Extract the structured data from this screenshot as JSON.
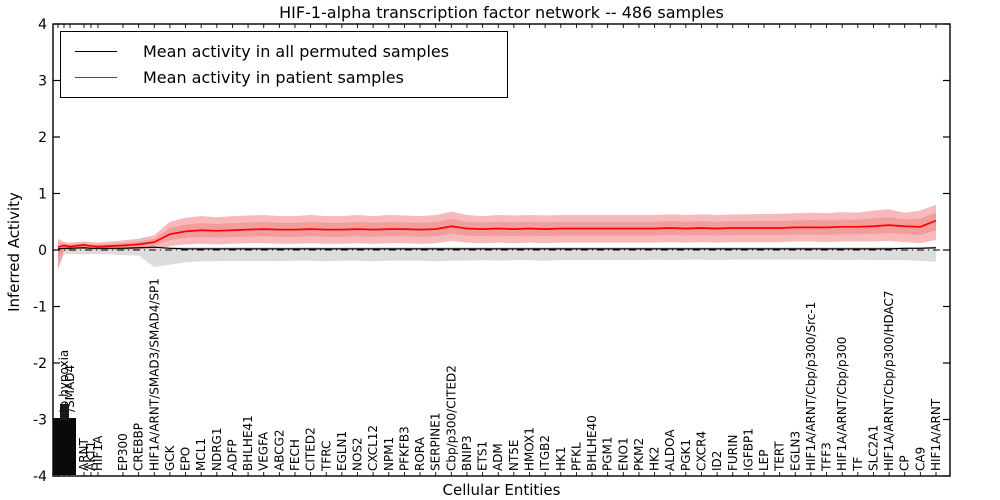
{
  "title": "HIF-1-alpha transcription factor network -- 486 samples",
  "axes": {
    "xlabel": "Cellular Entities",
    "ylabel": "Inferred Activity",
    "yticks": [
      "4",
      "3",
      "2",
      "1",
      "0",
      "-1",
      "-2",
      "-3",
      "-4"
    ],
    "ylim": [
      -4,
      4
    ]
  },
  "legend": {
    "items": [
      {
        "label": "Mean activity in all permuted samples",
        "color": "#000000"
      },
      {
        "label": "Mean activity in patient samples",
        "color": "#ff0000"
      }
    ]
  },
  "chart_data": {
    "type": "line",
    "title": "HIF-1-alpha transcription factor network -- 486 samples",
    "sample_count": 486,
    "xlabel": "Cellular Entities",
    "ylabel": "Inferred Activity",
    "ylim": [
      -4,
      4
    ],
    "grid": false,
    "legend_position": "upper left",
    "zero_line": {
      "y": 0,
      "style": "dash-dot",
      "color": "#000000"
    },
    "left_cluster_note": "first tick labels overlap into an unreadable black block; partially legible ones included",
    "categories": [
      "",
      "response to hypoxia",
      "/SMAD4",
      "ARNT",
      "AKT1",
      "HIF1A",
      "EP300",
      "CREBBP",
      "HIF1A/ARNT/SMAD3/SMAD4/SP1",
      "GCK",
      "EPO",
      "MCL1",
      "NDRG1",
      "ADFP",
      "BHLHE41",
      "VEGFA",
      "ABCG2",
      "FECH",
      "CITED2",
      "TFRC",
      "EGLN1",
      "NOS2",
      "CXCL12",
      "NPM1",
      "PFKFB3",
      "RORA",
      "SERPINE1",
      "Cbp/p300/CITED2",
      "BNIP3",
      "ETS1",
      "ADM",
      "NT5E",
      "HMOX1",
      "ITGB2",
      "HK1",
      "PFKL",
      "BHLHE40",
      "PGM1",
      "ENO1",
      "PKM2",
      "HK2",
      "ALDOA",
      "PGK1",
      "CXCR4",
      "ID2",
      "FURIN",
      "IGFBP1",
      "LEP",
      "TERT",
      "EGLN3",
      "HIF1A/ARNT/Cbp/p300/Src-1",
      "TFF3",
      "HIF1A/ARNT/Cbp/p300",
      "TF",
      "SLC2A1",
      "HIF1A/ARNT/Cbp/p300/HDAC7",
      "CP",
      "CA9",
      "HIF1A/ARNT"
    ],
    "series": [
      {
        "name": "Mean activity in all permuted samples",
        "color": "#000000",
        "band_color": "#c0c0c0",
        "values": [
          0.02,
          0.03,
          0.03,
          0.04,
          0.03,
          0.03,
          0.03,
          0.04,
          0.05,
          0.03,
          0.02,
          0.02,
          0.02,
          0.02,
          0.02,
          0.02,
          0.02,
          0.02,
          0.02,
          0.02,
          0.02,
          0.02,
          0.02,
          0.02,
          0.02,
          0.02,
          0.02,
          0.02,
          0.02,
          0.02,
          0.02,
          0.02,
          0.02,
          0.02,
          0.02,
          0.02,
          0.02,
          0.02,
          0.02,
          0.02,
          0.02,
          0.02,
          0.02,
          0.02,
          0.02,
          0.02,
          0.02,
          0.02,
          0.02,
          0.02,
          0.02,
          0.02,
          0.02,
          0.02,
          0.02,
          0.02,
          0.03,
          0.03,
          0.04
        ],
        "band_upper": [
          -0.04,
          0.05,
          0.05,
          0.06,
          0.05,
          0.05,
          0.06,
          0.06,
          0.07,
          0.06,
          0.05,
          0.05,
          0.05,
          0.05,
          0.05,
          0.05,
          0.05,
          0.05,
          0.05,
          0.05,
          0.05,
          0.05,
          0.05,
          0.05,
          0.05,
          0.05,
          0.05,
          0.05,
          0.05,
          0.05,
          0.05,
          0.05,
          0.05,
          0.05,
          0.05,
          0.05,
          0.05,
          0.05,
          0.05,
          0.05,
          0.05,
          0.05,
          0.05,
          0.05,
          0.05,
          0.05,
          0.05,
          0.05,
          0.05,
          0.05,
          0.05,
          0.05,
          0.05,
          0.05,
          0.05,
          0.05,
          0.05,
          0.06,
          0.06
        ],
        "band_lower": [
          -0.33,
          -0.07,
          -0.07,
          -0.08,
          -0.07,
          -0.07,
          -0.09,
          -0.1,
          -0.3,
          -0.26,
          -0.22,
          -0.2,
          -0.2,
          -0.19,
          -0.2,
          -0.19,
          -0.2,
          -0.19,
          -0.19,
          -0.2,
          -0.19,
          -0.19,
          -0.2,
          -0.19,
          -0.19,
          -0.19,
          -0.2,
          -0.19,
          -0.19,
          -0.18,
          -0.19,
          -0.18,
          -0.18,
          -0.19,
          -0.18,
          -0.18,
          -0.18,
          -0.18,
          -0.18,
          -0.18,
          -0.17,
          -0.18,
          -0.17,
          -0.17,
          -0.18,
          -0.17,
          -0.17,
          -0.17,
          -0.17,
          -0.17,
          -0.17,
          -0.17,
          -0.18,
          -0.17,
          -0.18,
          -0.18,
          -0.18,
          -0.19,
          -0.21
        ]
      },
      {
        "name": "Mean activity in patient samples",
        "color": "#ff0000",
        "band_color": "#f08080",
        "values": [
          0.05,
          0.08,
          0.06,
          0.09,
          0.07,
          0.06,
          0.08,
          0.1,
          0.14,
          0.28,
          0.33,
          0.35,
          0.34,
          0.35,
          0.36,
          0.37,
          0.36,
          0.36,
          0.37,
          0.36,
          0.36,
          0.37,
          0.36,
          0.37,
          0.37,
          0.36,
          0.37,
          0.42,
          0.38,
          0.37,
          0.38,
          0.37,
          0.38,
          0.37,
          0.38,
          0.38,
          0.38,
          0.38,
          0.38,
          0.38,
          0.38,
          0.39,
          0.38,
          0.39,
          0.38,
          0.39,
          0.39,
          0.39,
          0.39,
          0.4,
          0.4,
          0.4,
          0.41,
          0.41,
          0.42,
          0.44,
          0.42,
          0.41,
          0.52
        ],
        "band_upper": [
          0.2,
          0.14,
          0.13,
          0.15,
          0.14,
          0.13,
          0.17,
          0.2,
          0.26,
          0.5,
          0.57,
          0.6,
          0.58,
          0.6,
          0.61,
          0.62,
          0.6,
          0.6,
          0.62,
          0.6,
          0.6,
          0.62,
          0.6,
          0.62,
          0.61,
          0.6,
          0.62,
          0.68,
          0.62,
          0.6,
          0.62,
          0.61,
          0.62,
          0.61,
          0.62,
          0.62,
          0.62,
          0.62,
          0.62,
          0.62,
          0.62,
          0.63,
          0.62,
          0.63,
          0.62,
          0.63,
          0.63,
          0.64,
          0.64,
          0.65,
          0.66,
          0.65,
          0.67,
          0.66,
          0.7,
          0.72,
          0.66,
          0.7,
          0.8
        ],
        "band_lower": [
          -0.35,
          -0.02,
          0.0,
          0.02,
          0.01,
          0.0,
          0.0,
          0.01,
          0.03,
          0.07,
          0.1,
          0.11,
          0.1,
          0.11,
          0.12,
          0.12,
          0.11,
          0.11,
          0.12,
          0.11,
          0.11,
          0.12,
          0.11,
          0.12,
          0.12,
          0.11,
          0.12,
          0.16,
          0.13,
          0.12,
          0.13,
          0.12,
          0.13,
          0.12,
          0.13,
          0.13,
          0.13,
          0.13,
          0.13,
          0.13,
          0.13,
          0.14,
          0.13,
          0.14,
          0.13,
          0.14,
          0.14,
          0.14,
          0.14,
          0.15,
          0.15,
          0.14,
          0.15,
          0.15,
          0.15,
          0.16,
          0.14,
          0.12,
          0.18
        ]
      }
    ]
  }
}
